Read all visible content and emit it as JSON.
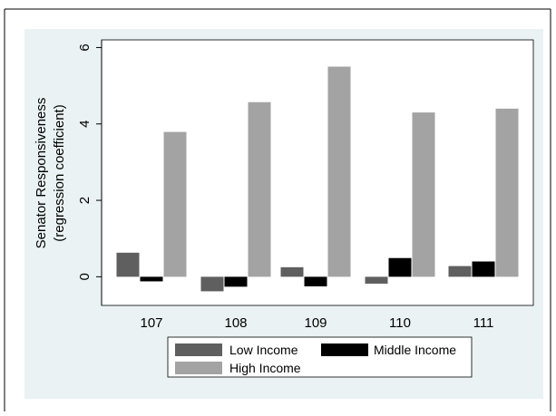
{
  "chart_data": {
    "type": "bar",
    "title": "",
    "xlabel": "",
    "ylabel_line1": "Senator Responsiveness",
    "ylabel_line2": "(regression coefficient)",
    "categories": [
      "107",
      "108",
      "109",
      "110",
      "111"
    ],
    "series": [
      {
        "name": "Low Income",
        "values": [
          0.63,
          -0.38,
          0.25,
          -0.18,
          0.28
        ]
      },
      {
        "name": "Middle Income",
        "values": [
          -0.12,
          -0.26,
          -0.25,
          0.49,
          0.4
        ]
      },
      {
        "name": "High Income",
        "values": [
          3.79,
          4.57,
          5.5,
          4.3,
          4.4
        ]
      }
    ],
    "ylim": [
      -0.75,
      6.2
    ],
    "yticks": [
      "0",
      "2",
      "4",
      "6"
    ],
    "grid": false,
    "legend_placement": "bottom",
    "colors": {
      "Low Income": "#5f5f5f",
      "Middle Income": "#000000",
      "High Income": "#a3a3a3",
      "plot_region": "#ffffff",
      "graph_region": "#eaf2f3"
    }
  }
}
